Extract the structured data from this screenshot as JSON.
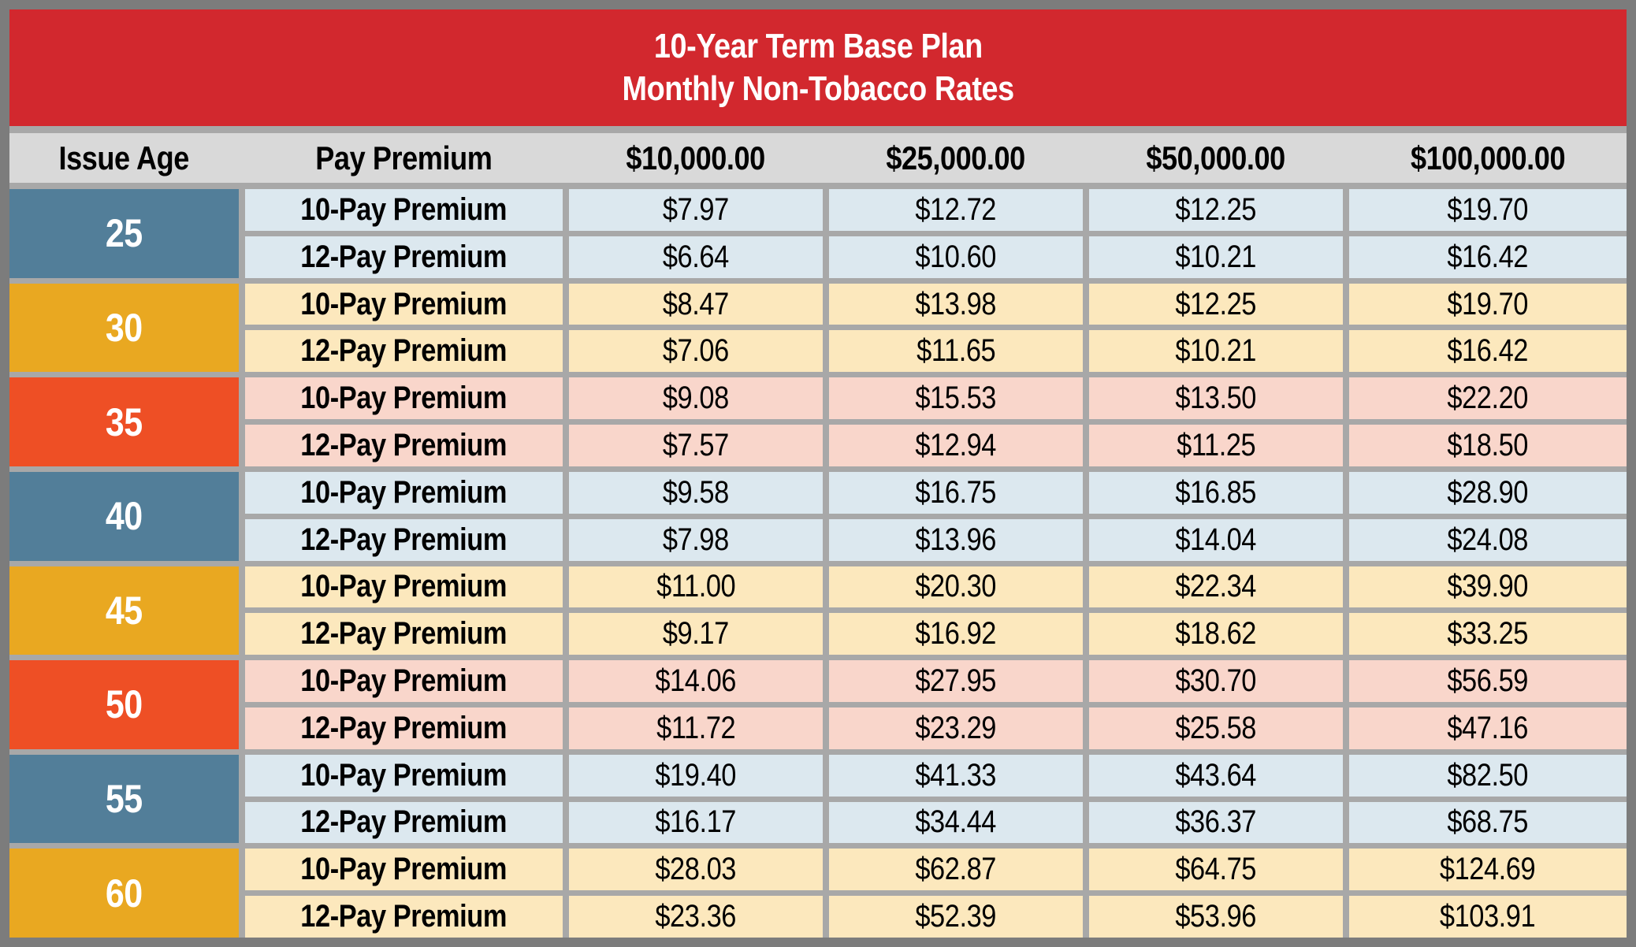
{
  "title": {
    "line1": "10-Year Term Base Plan",
    "line2": "Monthly Non-Tobacco Rates"
  },
  "columns": [
    "Issue Age",
    "Pay Premium",
    "$10,000.00",
    "$25,000.00",
    "$50,000.00",
    "$100,000.00"
  ],
  "row_labels": {
    "pay10": "10-Pay Premium",
    "pay12": "12-Pay Premium"
  },
  "groups": [
    {
      "age": "25",
      "theme": "blue",
      "pay10": [
        "$7.97",
        "$12.72",
        "$12.25",
        "$19.70"
      ],
      "pay12": [
        "$6.64",
        "$10.60",
        "$10.21",
        "$16.42"
      ]
    },
    {
      "age": "30",
      "theme": "amber",
      "pay10": [
        "$8.47",
        "$13.98",
        "$12.25",
        "$19.70"
      ],
      "pay12": [
        "$7.06",
        "$11.65",
        "$10.21",
        "$16.42"
      ]
    },
    {
      "age": "35",
      "theme": "red",
      "pay10": [
        "$9.08",
        "$15.53",
        "$13.50",
        "$22.20"
      ],
      "pay12": [
        "$7.57",
        "$12.94",
        "$11.25",
        "$18.50"
      ]
    },
    {
      "age": "40",
      "theme": "blue",
      "pay10": [
        "$9.58",
        "$16.75",
        "$16.85",
        "$28.90"
      ],
      "pay12": [
        "$7.98",
        "$13.96",
        "$14.04",
        "$24.08"
      ]
    },
    {
      "age": "45",
      "theme": "amber",
      "pay10": [
        "$11.00",
        "$20.30",
        "$22.34",
        "$39.90"
      ],
      "pay12": [
        "$9.17",
        "$16.92",
        "$18.62",
        "$33.25"
      ]
    },
    {
      "age": "50",
      "theme": "red",
      "pay10": [
        "$14.06",
        "$27.95",
        "$30.70",
        "$56.59"
      ],
      "pay12": [
        "$11.72",
        "$23.29",
        "$25.58",
        "$47.16"
      ]
    },
    {
      "age": "55",
      "theme": "blue",
      "pay10": [
        "$19.40",
        "$41.33",
        "$43.64",
        "$82.50"
      ],
      "pay12": [
        "$16.17",
        "$34.44",
        "$36.37",
        "$68.75"
      ]
    },
    {
      "age": "60",
      "theme": "amber",
      "pay10": [
        "$28.03",
        "$62.87",
        "$64.75",
        "$124.69"
      ],
      "pay12": [
        "$23.36",
        "$52.39",
        "$53.96",
        "$103.91"
      ]
    }
  ],
  "colors": {
    "title_band": "#d2282e",
    "title_text": "#ffffff",
    "header_bg": "#d9d9d9",
    "grid_gap": "#a8a8a8",
    "outer_border": "#7c7c7c",
    "body_text": "#000000",
    "age_blue": "#527e99",
    "age_amber": "#e9a821",
    "age_red": "#ee4f25",
    "row_blue": "#dce8ef",
    "row_amber": "#fce8bd",
    "row_red": "#f9d6cb"
  },
  "chart_data": {
    "type": "table",
    "title": "10-Year Term Base Plan Monthly Non-Tobacco Rates",
    "columns": [
      "Issue Age",
      "Pay Premium",
      "$10,000.00",
      "$25,000.00",
      "$50,000.00",
      "$100,000.00"
    ],
    "rows": [
      [
        "25",
        "10-Pay Premium",
        7.97,
        12.72,
        12.25,
        19.7
      ],
      [
        "25",
        "12-Pay Premium",
        6.64,
        10.6,
        10.21,
        16.42
      ],
      [
        "30",
        "10-Pay Premium",
        8.47,
        13.98,
        12.25,
        19.7
      ],
      [
        "30",
        "12-Pay Premium",
        7.06,
        11.65,
        10.21,
        16.42
      ],
      [
        "35",
        "10-Pay Premium",
        9.08,
        15.53,
        13.5,
        22.2
      ],
      [
        "35",
        "12-Pay Premium",
        7.57,
        12.94,
        11.25,
        18.5
      ],
      [
        "40",
        "10-Pay Premium",
        9.58,
        16.75,
        16.85,
        28.9
      ],
      [
        "40",
        "12-Pay Premium",
        7.98,
        13.96,
        14.04,
        24.08
      ],
      [
        "45",
        "10-Pay Premium",
        11.0,
        20.3,
        22.34,
        39.9
      ],
      [
        "45",
        "12-Pay Premium",
        9.17,
        16.92,
        18.62,
        33.25
      ],
      [
        "50",
        "10-Pay Premium",
        14.06,
        27.95,
        30.7,
        56.59
      ],
      [
        "50",
        "12-Pay Premium",
        11.72,
        23.29,
        25.58,
        47.16
      ],
      [
        "55",
        "10-Pay Premium",
        19.4,
        41.33,
        43.64,
        82.5
      ],
      [
        "55",
        "12-Pay Premium",
        16.17,
        34.44,
        36.37,
        68.75
      ],
      [
        "60",
        "10-Pay Premium",
        28.03,
        62.87,
        64.75,
        124.69
      ],
      [
        "60",
        "12-Pay Premium",
        23.36,
        52.39,
        53.96,
        103.91
      ]
    ]
  }
}
